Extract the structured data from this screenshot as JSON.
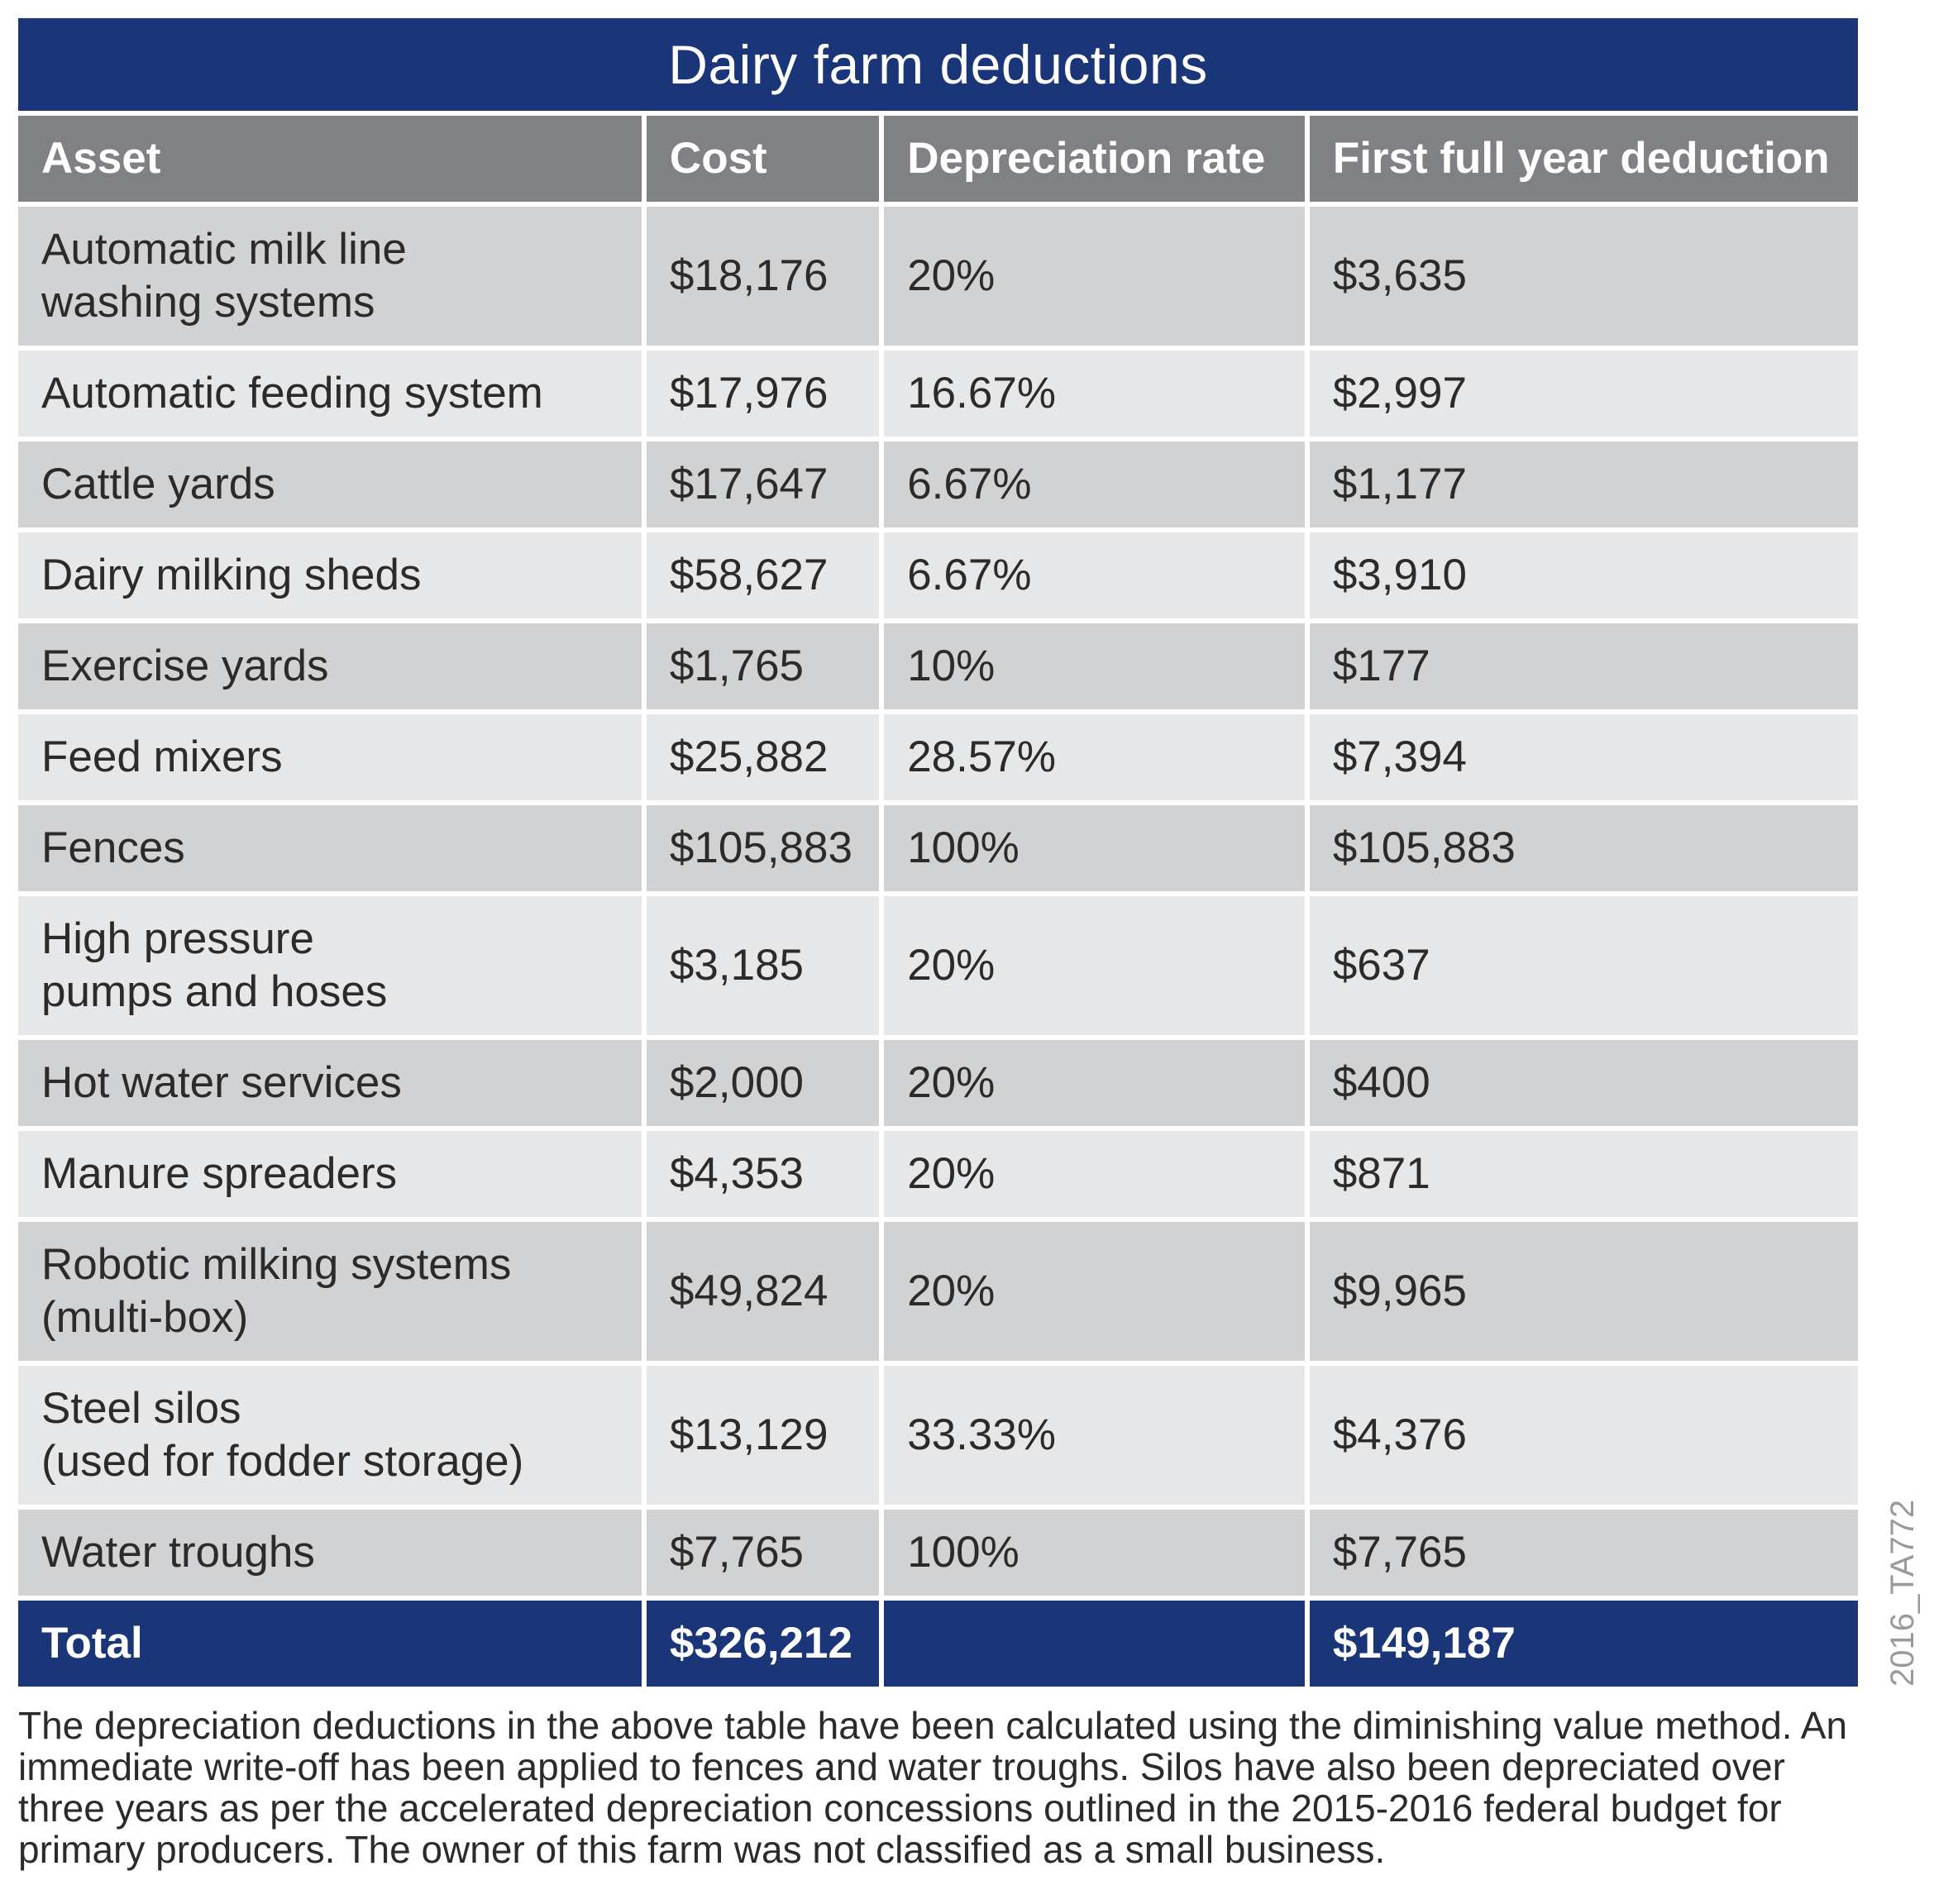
{
  "title": "Dairy farm deductions",
  "headers": {
    "asset": "Asset",
    "cost": "Cost",
    "rate": "Depreciation rate",
    "deduction": "First full year deduction"
  },
  "rows": [
    {
      "asset": "Automatic milk line\nwashing systems",
      "cost": "$18,176",
      "rate": "20%",
      "deduction": "$3,635"
    },
    {
      "asset": "Automatic feeding system",
      "cost": "$17,976",
      "rate": "16.67%",
      "deduction": "$2,997"
    },
    {
      "asset": "Cattle yards",
      "cost": "$17,647",
      "rate": "6.67%",
      "deduction": "$1,177"
    },
    {
      "asset": "Dairy milking sheds",
      "cost": "$58,627",
      "rate": "6.67%",
      "deduction": "$3,910"
    },
    {
      "asset": "Exercise yards",
      "cost": "$1,765",
      "rate": "10%",
      "deduction": "$177"
    },
    {
      "asset": "Feed mixers",
      "cost": "$25,882",
      "rate": "28.57%",
      "deduction": "$7,394"
    },
    {
      "asset": "Fences",
      "cost": "$105,883",
      "rate": "100%",
      "deduction": "$105,883"
    },
    {
      "asset": "High pressure\npumps and hoses",
      "cost": "$3,185",
      "rate": "20%",
      "deduction": "$637"
    },
    {
      "asset": "Hot water services",
      "cost": "$2,000",
      "rate": "20%",
      "deduction": "$400"
    },
    {
      "asset": "Manure spreaders",
      "cost": "$4,353",
      "rate": "20%",
      "deduction": "$871"
    },
    {
      "asset": "Robotic milking systems\n(multi-box)",
      "cost": "$49,824",
      "rate": "20%",
      "deduction": "$9,965"
    },
    {
      "asset": "Steel silos\n(used for fodder storage)",
      "cost": "$13,129",
      "rate": "33.33%",
      "deduction": "$4,376"
    },
    {
      "asset": "Water troughs",
      "cost": "$7,765",
      "rate": "100%",
      "deduction": "$7,765"
    }
  ],
  "total": {
    "label": "Total",
    "cost": "$326,212",
    "rate": "",
    "deduction": "$149,187"
  },
  "footnote": "The depreciation deductions in the above table have been calculated using the diminishing value method. An immediate write-off has been applied to fences and water troughs. Silos have also been depreciated over three years as per the accelerated depreciation concessions outlined in the 2015-2016 federal budget for primary producers. The owner of this farm was not classified as a small business.",
  "figure_code": "2016_TA772",
  "colors": {
    "navy": "#1b3579",
    "header_grey": "#808184",
    "row_dark": "#d1d2d4",
    "row_light": "#e6e7e8"
  }
}
